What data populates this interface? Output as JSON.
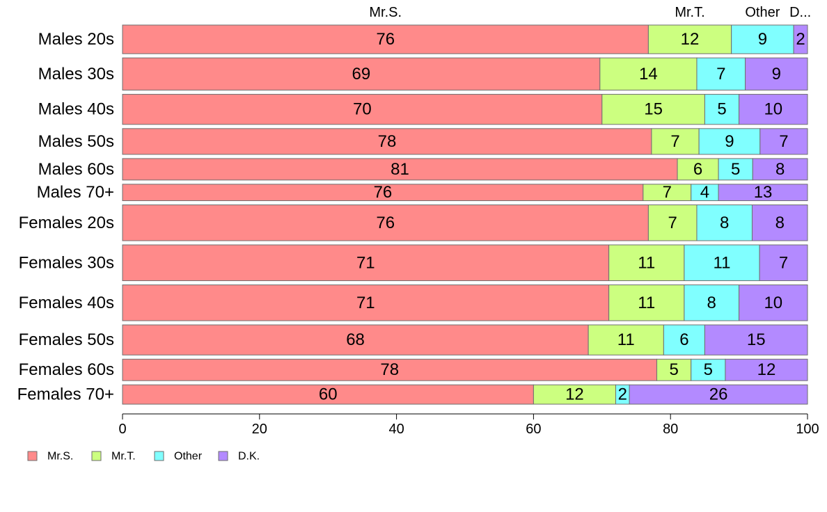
{
  "chart_data": {
    "type": "bar",
    "orientation": "horizontal",
    "stacked": true,
    "categories": [
      "Males 20s",
      "Males 30s",
      "Males 40s",
      "Males 50s",
      "Males 60s",
      "Males 70+",
      "Females 20s",
      "Females 30s",
      "Females 40s",
      "Females 50s",
      "Females 60s",
      "Females 70+"
    ],
    "series": [
      {
        "name": "Mr.S.",
        "color": "#FF8A8A",
        "values": [
          76,
          69,
          70,
          78,
          81,
          76,
          76,
          71,
          71,
          68,
          78,
          60
        ]
      },
      {
        "name": "Mr.T.",
        "color": "#CCFF80",
        "values": [
          12,
          14,
          15,
          7,
          6,
          7,
          7,
          11,
          11,
          11,
          5,
          12
        ]
      },
      {
        "name": "Other",
        "color": "#80FFFF",
        "values": [
          9,
          7,
          5,
          9,
          5,
          4,
          8,
          11,
          8,
          6,
          5,
          2
        ]
      },
      {
        "name": "D.K.",
        "color": "#B38AFF",
        "values": [
          2,
          9,
          10,
          7,
          8,
          13,
          8,
          7,
          10,
          15,
          12,
          26
        ]
      }
    ],
    "top_labels": [
      "Mr.S.",
      "Mr.T.",
      "Other",
      "D..."
    ],
    "xlim": [
      0,
      100
    ],
    "xticks": [
      0,
      20,
      40,
      60,
      80,
      100
    ],
    "xlabel": "",
    "ylabel": "",
    "legend": "bottom-left",
    "grid": false
  }
}
